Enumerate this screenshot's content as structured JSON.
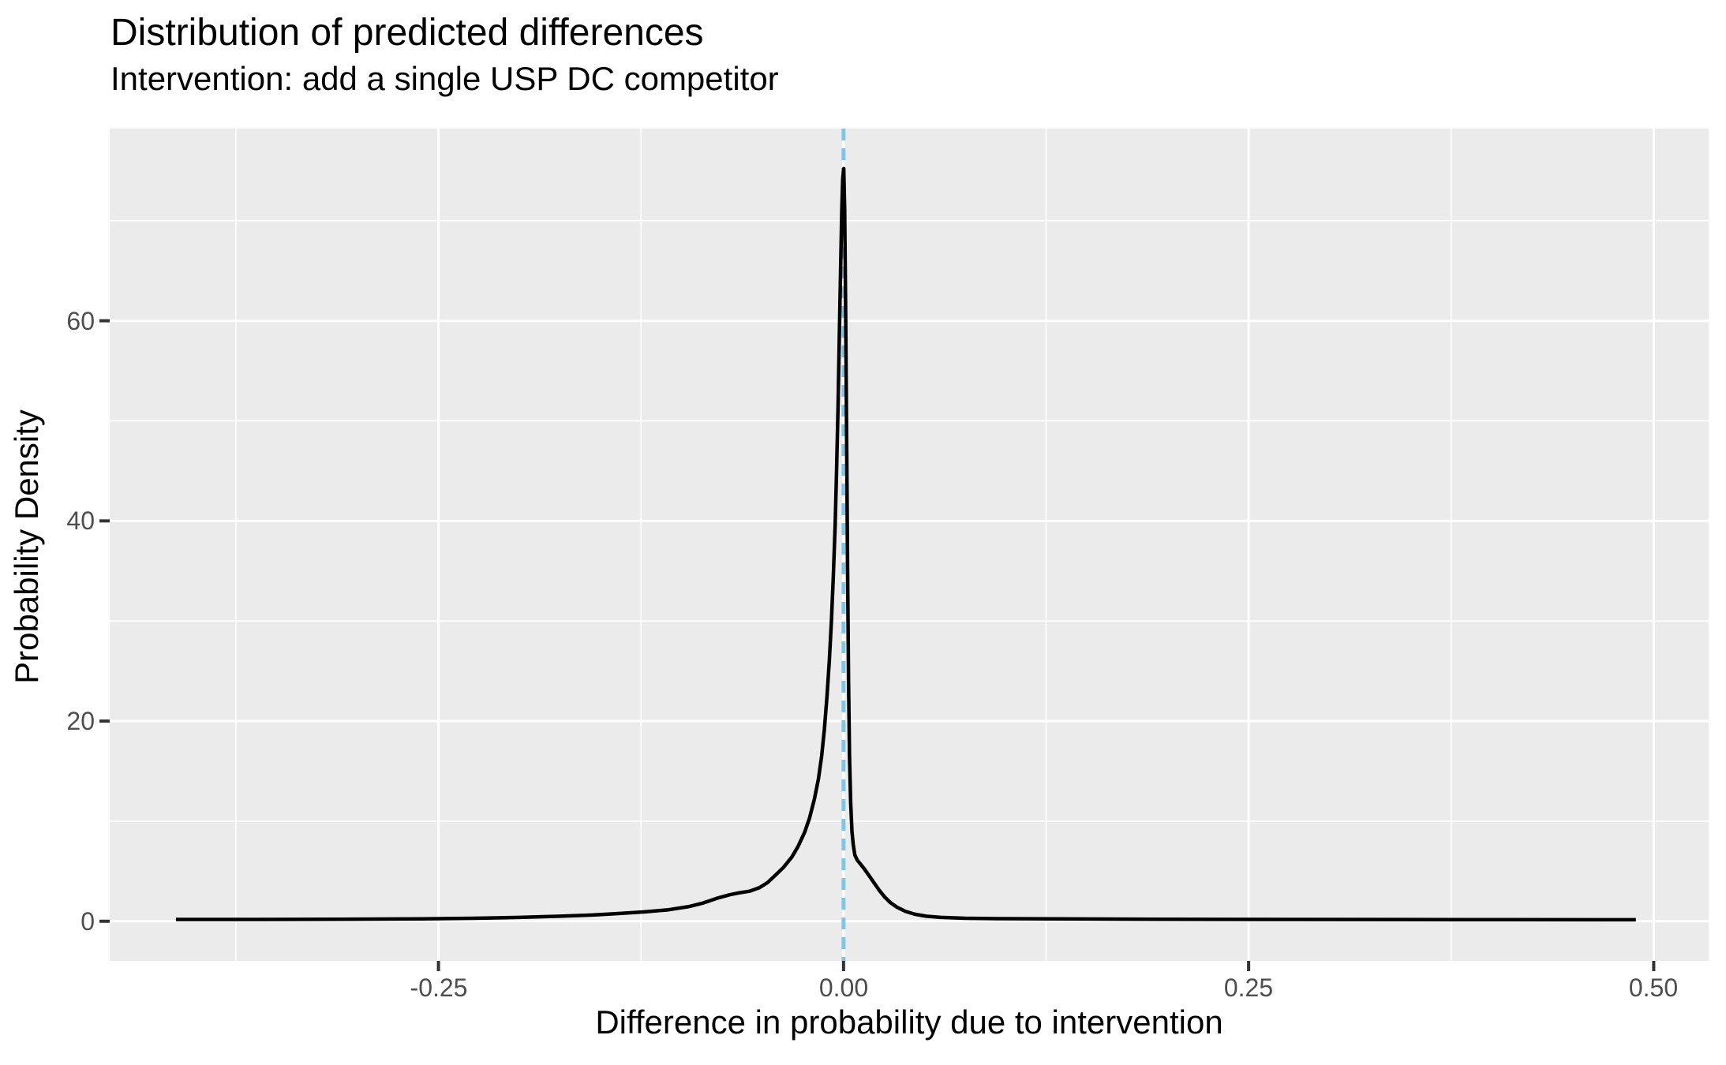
{
  "chart_data": {
    "type": "line",
    "title": "Distribution of predicted differences",
    "subtitle": "Intervention: add a single USP DC competitor",
    "xlabel": "Difference in probability due to intervention",
    "ylabel": "Probability Density",
    "xlim": [
      -0.4529,
      0.5339
    ],
    "ylim": [
      -3.96,
      79.2
    ],
    "x_ticks": [
      -0.25,
      0,
      0.25,
      0.5
    ],
    "x_tick_labels": [
      "-0.25",
      "0.00",
      "0.25",
      "0.50"
    ],
    "x_minor_ticks": [
      -0.375,
      -0.125,
      0.125,
      0.375
    ],
    "y_ticks": [
      0,
      20,
      40,
      60
    ],
    "y_tick_labels": [
      "0",
      "20",
      "40",
      "60"
    ],
    "y_minor_ticks": [
      10,
      30,
      50,
      70
    ],
    "grid": "on",
    "legend_position": "none",
    "reference_line": {
      "orientation": "vertical",
      "x": 0,
      "style": "dashed"
    },
    "series": [
      {
        "name": "predicted-difference-density",
        "points": [
          [
            -0.412,
            0.18
          ],
          [
            -0.36,
            0.18
          ],
          [
            -0.31,
            0.2
          ],
          [
            -0.26,
            0.24
          ],
          [
            -0.228,
            0.3
          ],
          [
            -0.2,
            0.38
          ],
          [
            -0.175,
            0.5
          ],
          [
            -0.155,
            0.62
          ],
          [
            -0.138,
            0.78
          ],
          [
            -0.122,
            0.95
          ],
          [
            -0.108,
            1.15
          ],
          [
            -0.096,
            1.45
          ],
          [
            -0.087,
            1.8
          ],
          [
            -0.078,
            2.3
          ],
          [
            -0.07,
            2.65
          ],
          [
            -0.064,
            2.85
          ],
          [
            -0.058,
            3.0
          ],
          [
            -0.052,
            3.35
          ],
          [
            -0.047,
            3.85
          ],
          [
            -0.042,
            4.6
          ],
          [
            -0.037,
            5.4
          ],
          [
            -0.032,
            6.4
          ],
          [
            -0.028,
            7.5
          ],
          [
            -0.024,
            8.9
          ],
          [
            -0.021,
            10.3
          ],
          [
            -0.018,
            12.2
          ],
          [
            -0.0155,
            14.2
          ],
          [
            -0.0135,
            16.5
          ],
          [
            -0.0118,
            19.2
          ],
          [
            -0.0102,
            22.5
          ],
          [
            -0.0088,
            26.0
          ],
          [
            -0.0075,
            30.0
          ],
          [
            -0.0063,
            34.5
          ],
          [
            -0.0052,
            39.5
          ],
          [
            -0.0043,
            45.0
          ],
          [
            -0.0034,
            51.5
          ],
          [
            -0.0026,
            58.5
          ],
          [
            -0.0018,
            65.5
          ],
          [
            -0.0011,
            71.0
          ],
          [
            -0.0005,
            74.2
          ],
          [
            0.0001,
            75.2
          ],
          [
            0.0007,
            71.0
          ],
          [
            0.0013,
            61.0
          ],
          [
            0.0019,
            48.0
          ],
          [
            0.0025,
            35.0
          ],
          [
            0.0031,
            24.0
          ],
          [
            0.0037,
            16.5
          ],
          [
            0.0044,
            11.8
          ],
          [
            0.0052,
            9.0
          ],
          [
            0.006,
            7.6
          ],
          [
            0.007,
            6.6
          ],
          [
            0.0085,
            6.1
          ],
          [
            0.0105,
            5.7
          ],
          [
            0.013,
            5.2
          ],
          [
            0.016,
            4.5
          ],
          [
            0.019,
            3.8
          ],
          [
            0.022,
            3.1
          ],
          [
            0.0255,
            2.4
          ],
          [
            0.029,
            1.85
          ],
          [
            0.033,
            1.4
          ],
          [
            0.038,
            1.0
          ],
          [
            0.044,
            0.7
          ],
          [
            0.051,
            0.5
          ],
          [
            0.06,
            0.38
          ],
          [
            0.075,
            0.3
          ],
          [
            0.095,
            0.26
          ],
          [
            0.13,
            0.23
          ],
          [
            0.19,
            0.2
          ],
          [
            0.27,
            0.18
          ],
          [
            0.38,
            0.16
          ],
          [
            0.489,
            0.15
          ]
        ]
      }
    ],
    "colors": {
      "curve": "#000000",
      "reference_line": "#82C4E5",
      "panel_background": "#EBEBEB",
      "gridline": "#FFFFFF",
      "tick_mark": "#333333",
      "tick_label": "#4D4D4D",
      "text": "#000000"
    }
  }
}
